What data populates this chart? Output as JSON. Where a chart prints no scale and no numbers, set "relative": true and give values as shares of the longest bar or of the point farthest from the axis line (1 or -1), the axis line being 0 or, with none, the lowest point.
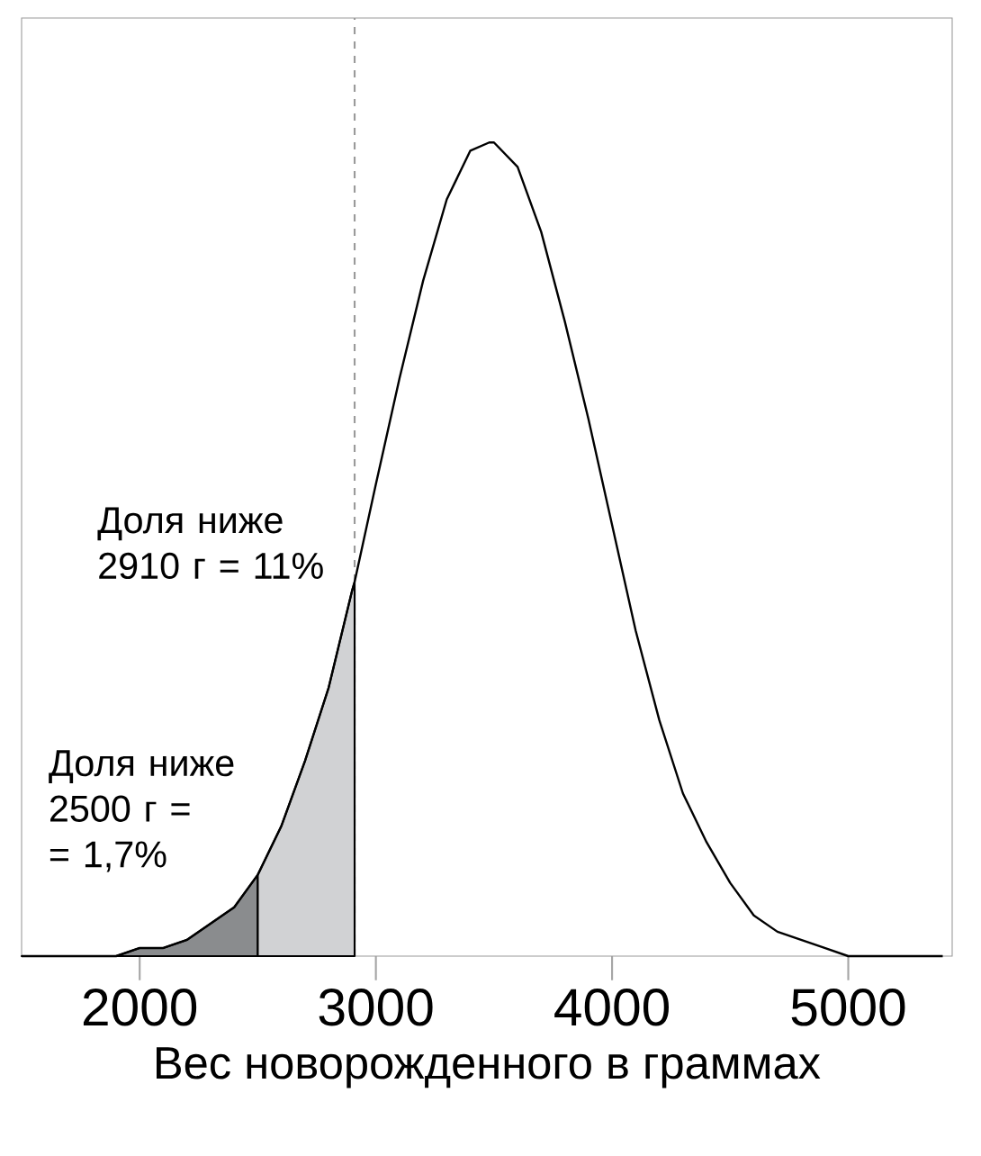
{
  "chart_data": {
    "type": "line",
    "relative": true,
    "xlabel": "Вес новорожденного в граммах",
    "xlim": [
      1500,
      5440
    ],
    "xticks": [
      2000,
      3000,
      4000,
      5000
    ],
    "series": [
      {
        "color": "#000000",
        "x": [
          1500,
          1600,
          1700,
          1800,
          1900,
          2000,
          2100,
          2200,
          2300,
          2400,
          2500,
          2600,
          2700,
          2800,
          2900,
          2910,
          3000,
          3100,
          3200,
          3300,
          3400,
          3480,
          3500,
          3600,
          3700,
          3800,
          3900,
          4000,
          4100,
          4200,
          4300,
          4400,
          4500,
          4600,
          4700,
          4800,
          4900,
          5000,
          5100,
          5200,
          5300,
          5400
        ],
        "values": [
          0,
          0,
          0,
          0,
          0,
          0.01,
          0.01,
          0.02,
          0.04,
          0.06,
          0.1,
          0.16,
          0.24,
          0.33,
          0.45,
          0.46,
          0.58,
          0.71,
          0.83,
          0.93,
          0.99,
          1,
          1,
          0.97,
          0.89,
          0.78,
          0.66,
          0.53,
          0.4,
          0.29,
          0.2,
          0.14,
          0.09,
          0.05,
          0.03,
          0.02,
          0.01,
          0,
          0,
          0,
          0,
          0
        ]
      },
      {
        "type": "area",
        "color": "#8a8c8e",
        "x": [
          1500,
          1600,
          1700,
          1800,
          1900,
          2000,
          2100,
          2200,
          2300,
          2400,
          2500
        ],
        "values": [
          0,
          0,
          0,
          0,
          0,
          0.01,
          0.01,
          0.02,
          0.04,
          0.06,
          0.1
        ]
      },
      {
        "type": "area",
        "color": "#d1d2d4",
        "x": [
          2500,
          2600,
          2700,
          2800,
          2900,
          2910
        ],
        "values": [
          0.1,
          0.16,
          0.24,
          0.33,
          0.45,
          0.46
        ]
      }
    ],
    "annotations": [
      {
        "text": "Доля ниже 2500 г = = 1,7%",
        "x": 2500,
        "y": 0.1
      },
      {
        "text": "Доля ниже 2910 г = 11%",
        "x": 2910,
        "y": 0.46
      }
    ],
    "ref_lines": [
      {
        "axis": "x",
        "value": 2910,
        "color": "#9a9a9a",
        "line_style": "dashed"
      }
    ]
  }
}
